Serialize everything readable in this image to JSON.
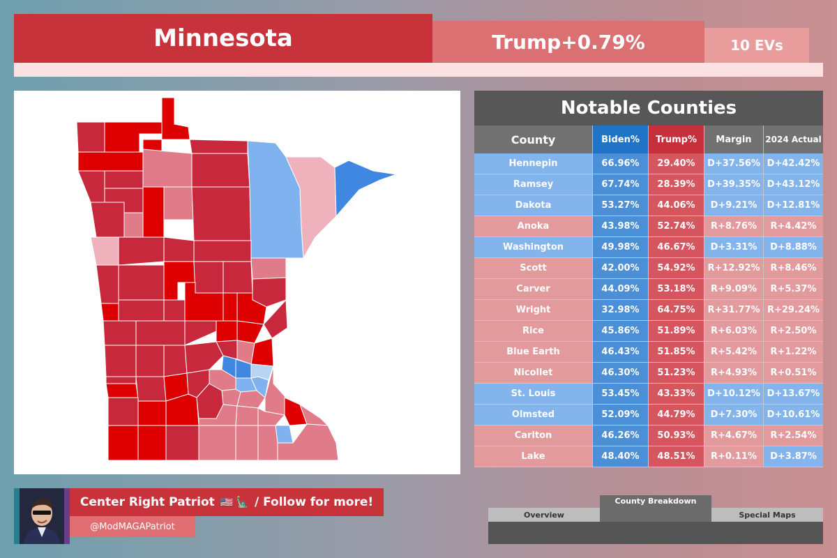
{
  "header": {
    "state": "Minnesota",
    "margin": "Trump+0.79%",
    "evs": "10 EVs"
  },
  "colors": {
    "safe_r": "#c8283b",
    "strong_r": "#de0000",
    "lean_r": "#e07b8a",
    "tilt_r": "#efb2bc",
    "lean_d": "#7fb2ef",
    "strong_d": "#3f87e0",
    "tilt_d": "#b8d4f3"
  },
  "table": {
    "title": "Notable Counties",
    "headers": {
      "county": "County",
      "biden": "Biden%",
      "trump": "Trump%",
      "margin": "Margin",
      "actual": "2024 Actual"
    },
    "rows": [
      {
        "county": "Hennepin",
        "biden": "66.96%",
        "trump": "29.40%",
        "margin": "D+37.56%",
        "actual": "D+42.42%"
      },
      {
        "county": "Ramsey",
        "biden": "67.74%",
        "trump": "28.39%",
        "margin": "D+39.35%",
        "actual": "D+43.12%"
      },
      {
        "county": "Dakota",
        "biden": "53.27%",
        "trump": "44.06%",
        "margin": "D+9.21%",
        "actual": "D+12.81%"
      },
      {
        "county": "Anoka",
        "biden": "43.98%",
        "trump": "52.74%",
        "margin": "R+8.76%",
        "actual": "R+4.42%"
      },
      {
        "county": "Washington",
        "biden": "49.98%",
        "trump": "46.67%",
        "margin": "D+3.31%",
        "actual": "D+8.88%"
      },
      {
        "county": "Scott",
        "biden": "42.00%",
        "trump": "54.92%",
        "margin": "R+12.92%",
        "actual": "R+8.46%"
      },
      {
        "county": "Carver",
        "biden": "44.09%",
        "trump": "53.18%",
        "margin": "R+9.09%",
        "actual": "R+5.37%"
      },
      {
        "county": "Wright",
        "biden": "32.98%",
        "trump": "64.75%",
        "margin": "R+31.77%",
        "actual": "R+29.24%"
      },
      {
        "county": "Rice",
        "biden": "45.86%",
        "trump": "51.89%",
        "margin": "R+6.03%",
        "actual": "R+2.50%"
      },
      {
        "county": "Blue Earth",
        "biden": "46.43%",
        "trump": "51.85%",
        "margin": "R+5.42%",
        "actual": "R+1.22%"
      },
      {
        "county": "Nicollet",
        "biden": "46.30%",
        "trump": "51.23%",
        "margin": "R+4.93%",
        "actual": "R+0.51%"
      },
      {
        "county": "St. Louis",
        "biden": "53.45%",
        "trump": "43.33%",
        "margin": "D+10.12%",
        "actual": "D+13.67%"
      },
      {
        "county": "Olmsted",
        "biden": "52.09%",
        "trump": "44.79%",
        "margin": "D+7.30%",
        "actual": "D+10.61%"
      },
      {
        "county": "Carlton",
        "biden": "46.26%",
        "trump": "50.93%",
        "margin": "R+4.67%",
        "actual": "R+2.54%"
      },
      {
        "county": "Lake",
        "biden": "48.40%",
        "trump": "48.51%",
        "margin": "R+0.11%",
        "actual": "D+3.87%"
      }
    ]
  },
  "credit": {
    "name": "Center Right Patriot",
    "flag1": "🇺🇸",
    "flag2": "🗽",
    "suffix": "/ Follow for more!",
    "handle": "@ModMAGAPatriot"
  },
  "nav": {
    "overview": "Overview",
    "county_breakdown": "County Breakdown",
    "special_maps": "Special Maps"
  }
}
